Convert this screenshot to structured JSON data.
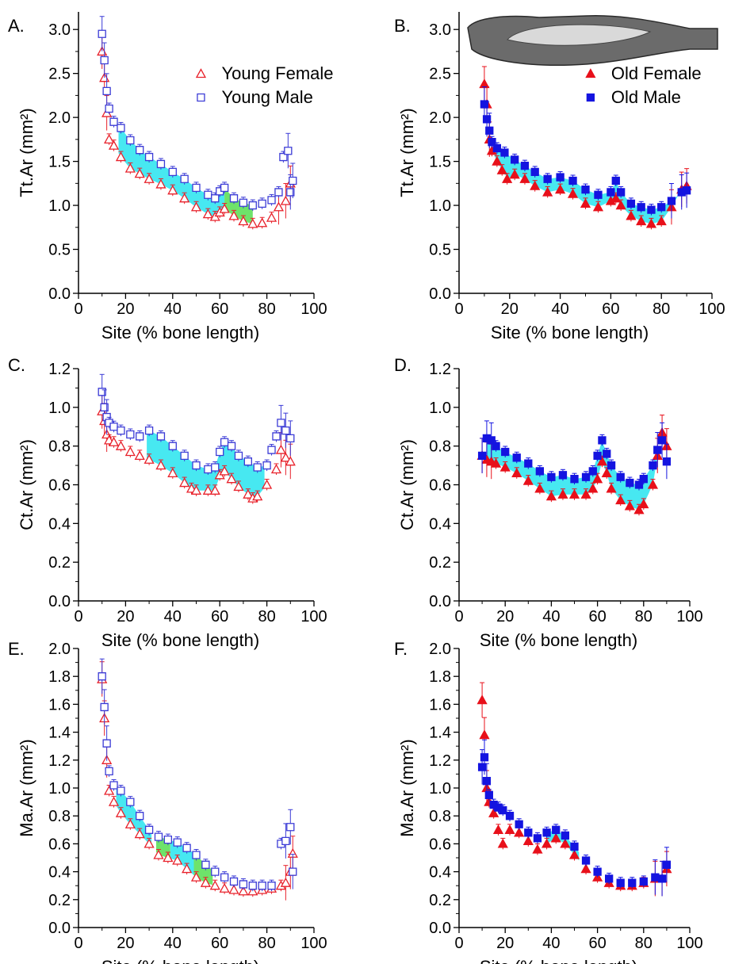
{
  "chart_data": [
    {
      "panel": "A.",
      "type": "scatter",
      "xlabel": "Site (% bone length)",
      "ylabel": "Tt.Ar (mm²)",
      "xlim": [
        0,
        100
      ],
      "ylim": [
        0,
        3.2
      ],
      "xticks": [
        "0",
        "20",
        "40",
        "60",
        "80",
        "100"
      ],
      "yticks": [
        "0.0",
        "0.5",
        "1.0",
        "1.5",
        "2.0",
        "2.5",
        "3.0"
      ],
      "legend_position": "top-right",
      "series": [
        {
          "name": "Young Female",
          "marker": "open-triangle",
          "color": "#e8202a",
          "x": [
            10,
            11,
            12,
            13,
            15,
            18,
            22,
            26,
            30,
            35,
            40,
            45,
            50,
            55,
            58,
            60,
            62,
            66,
            70,
            74,
            78,
            82,
            85,
            88,
            90
          ],
          "y": [
            2.75,
            2.45,
            2.05,
            1.75,
            1.68,
            1.55,
            1.42,
            1.36,
            1.3,
            1.24,
            1.17,
            1.08,
            0.98,
            0.9,
            0.87,
            0.92,
            0.96,
            0.88,
            0.82,
            0.79,
            0.8,
            0.86,
            0.98,
            1.05,
            1.25
          ]
        },
        {
          "name": "Young Male",
          "marker": "open-square",
          "color": "#3b3bd6",
          "x": [
            10,
            11,
            12,
            13,
            15,
            18,
            22,
            26,
            30,
            35,
            40,
            45,
            50,
            55,
            58,
            60,
            62,
            66,
            70,
            74,
            78,
            82,
            85,
            87,
            89,
            90,
            91
          ],
          "y": [
            2.95,
            2.65,
            2.3,
            2.1,
            1.95,
            1.88,
            1.74,
            1.63,
            1.55,
            1.47,
            1.38,
            1.3,
            1.2,
            1.12,
            1.08,
            1.16,
            1.2,
            1.08,
            1.03,
            1.0,
            1.02,
            1.06,
            1.15,
            1.55,
            1.62,
            1.15,
            1.28
          ]
        }
      ],
      "shading": [
        {
          "color": "cyan",
          "x": [
            17,
            62
          ]
        },
        {
          "color": "green",
          "x": [
            62,
            74
          ]
        }
      ]
    },
    {
      "panel": "B.",
      "type": "scatter",
      "xlabel": "Site (% bone length)",
      "ylabel": "Tt.Ar (mm²)",
      "xlim": [
        0,
        100
      ],
      "ylim": [
        0,
        3.2
      ],
      "xticks": [
        "0",
        "20",
        "40",
        "60",
        "80",
        "100"
      ],
      "yticks": [
        "0.0",
        "0.5",
        "1.0",
        "1.5",
        "2.0",
        "2.5",
        "3.0"
      ],
      "legend_position": "top-right",
      "inset_image": "bone-photo",
      "series": [
        {
          "name": "Old Female",
          "marker": "filled-triangle",
          "color": "#e8101a",
          "x": [
            10,
            11,
            12,
            13,
            15,
            17,
            19,
            22,
            26,
            30,
            35,
            40,
            45,
            50,
            55,
            60,
            62,
            64,
            68,
            72,
            76,
            80,
            84,
            88,
            90
          ],
          "y": [
            2.38,
            2.15,
            1.75,
            1.62,
            1.5,
            1.4,
            1.3,
            1.35,
            1.3,
            1.22,
            1.15,
            1.18,
            1.13,
            1.02,
            0.98,
            1.05,
            1.08,
            1.0,
            0.88,
            0.82,
            0.79,
            0.82,
            0.98,
            1.18,
            1.22
          ]
        },
        {
          "name": "Old Male",
          "marker": "filled-square",
          "color": "#1414e0",
          "x": [
            10,
            11,
            12,
            13,
            15,
            18,
            22,
            26,
            30,
            35,
            40,
            45,
            50,
            55,
            60,
            62,
            64,
            68,
            72,
            76,
            80,
            84,
            88,
            90
          ],
          "y": [
            2.15,
            1.98,
            1.85,
            1.72,
            1.65,
            1.6,
            1.52,
            1.45,
            1.38,
            1.3,
            1.32,
            1.28,
            1.18,
            1.12,
            1.15,
            1.28,
            1.15,
            1.02,
            0.98,
            0.95,
            0.98,
            1.05,
            1.15,
            1.17
          ]
        }
      ],
      "shading": [
        {
          "color": "cyan",
          "x": [
            14,
            88
          ]
        }
      ]
    },
    {
      "panel": "C.",
      "type": "scatter",
      "xlabel": "Site (% bone length)",
      "ylabel": "Ct.Ar (mm²)",
      "xlim": [
        0,
        100
      ],
      "ylim": [
        0,
        1.2
      ],
      "xticks": [
        "0",
        "20",
        "40",
        "60",
        "80",
        "100"
      ],
      "yticks": [
        "0.0",
        "0.2",
        "0.4",
        "0.6",
        "0.8",
        "1.0",
        "1.2"
      ],
      "series": [
        {
          "name": "Young Female",
          "marker": "open-triangle",
          "color": "#e8202a",
          "x": [
            10,
            11,
            12,
            13,
            15,
            18,
            22,
            26,
            30,
            35,
            40,
            45,
            48,
            50,
            55,
            58,
            60,
            62,
            65,
            68,
            72,
            74,
            76,
            80,
            84,
            86,
            88,
            90
          ],
          "y": [
            0.98,
            0.93,
            0.86,
            0.83,
            0.82,
            0.8,
            0.77,
            0.75,
            0.73,
            0.7,
            0.66,
            0.61,
            0.58,
            0.57,
            0.57,
            0.57,
            0.65,
            0.67,
            0.63,
            0.59,
            0.55,
            0.53,
            0.54,
            0.6,
            0.68,
            0.78,
            0.74,
            0.72
          ]
        },
        {
          "name": "Young Male",
          "marker": "open-square",
          "color": "#3b3bd6",
          "x": [
            10,
            11,
            12,
            13,
            15,
            18,
            22,
            26,
            30,
            35,
            40,
            45,
            50,
            55,
            58,
            60,
            62,
            65,
            68,
            72,
            76,
            80,
            82,
            84,
            86,
            88,
            90
          ],
          "y": [
            1.08,
            1.0,
            0.95,
            0.92,
            0.9,
            0.88,
            0.86,
            0.85,
            0.88,
            0.85,
            0.8,
            0.75,
            0.7,
            0.68,
            0.69,
            0.77,
            0.82,
            0.8,
            0.75,
            0.72,
            0.69,
            0.7,
            0.78,
            0.85,
            0.92,
            0.88,
            0.84
          ]
        }
      ],
      "shading": [
        {
          "color": "cyan",
          "x": [
            29,
            79
          ]
        }
      ]
    },
    {
      "panel": "D.",
      "type": "scatter",
      "xlabel": "Site (% bone length)",
      "ylabel": "Ct.Ar (mm²)",
      "xlim": [
        0,
        100
      ],
      "ylim": [
        0,
        1.2
      ],
      "xticks": [
        "0",
        "20",
        "40",
        "60",
        "80",
        "100"
      ],
      "yticks": [
        "0.0",
        "0.2",
        "0.4",
        "0.6",
        "0.8",
        "1.0",
        "1.2"
      ],
      "series": [
        {
          "name": "Old Female",
          "marker": "filled-triangle",
          "color": "#e8101a",
          "x": [
            10,
            12,
            14,
            16,
            20,
            25,
            30,
            35,
            40,
            45,
            50,
            55,
            58,
            60,
            62,
            64,
            66,
            70,
            74,
            78,
            80,
            84,
            86,
            88,
            90
          ],
          "y": [
            0.75,
            0.73,
            0.72,
            0.71,
            0.69,
            0.66,
            0.62,
            0.58,
            0.54,
            0.55,
            0.55,
            0.55,
            0.58,
            0.63,
            0.72,
            0.66,
            0.58,
            0.52,
            0.49,
            0.47,
            0.5,
            0.6,
            0.75,
            0.87,
            0.8
          ]
        },
        {
          "name": "Old Male",
          "marker": "filled-square",
          "color": "#1414e0",
          "x": [
            10,
            12,
            14,
            16,
            20,
            25,
            30,
            35,
            40,
            45,
            50,
            55,
            58,
            60,
            62,
            64,
            66,
            70,
            74,
            78,
            80,
            84,
            86,
            88,
            90
          ],
          "y": [
            0.75,
            0.84,
            0.83,
            0.8,
            0.77,
            0.74,
            0.71,
            0.67,
            0.64,
            0.65,
            0.63,
            0.64,
            0.67,
            0.75,
            0.83,
            0.76,
            0.7,
            0.64,
            0.61,
            0.6,
            0.63,
            0.7,
            0.78,
            0.83,
            0.72
          ]
        }
      ],
      "shading": [
        {
          "color": "cyan",
          "x": [
            12,
            86
          ]
        }
      ]
    },
    {
      "panel": "E.",
      "type": "scatter",
      "xlabel": "Site (% bone length)",
      "ylabel": "Ma.Ar (mm²)",
      "xlim": [
        0,
        100
      ],
      "ylim": [
        0,
        2.0
      ],
      "xticks": [
        "0",
        "20",
        "40",
        "60",
        "80",
        "100"
      ],
      "yticks": [
        "0.0",
        "0.2",
        "0.4",
        "0.6",
        "0.8",
        "1.0",
        "1.2",
        "1.4",
        "1.6",
        "1.8",
        "2.0"
      ],
      "series": [
        {
          "name": "Young Female",
          "marker": "open-triangle",
          "color": "#e8202a",
          "x": [
            10,
            11,
            12,
            13,
            15,
            18,
            22,
            26,
            30,
            34,
            38,
            42,
            46,
            50,
            54,
            58,
            62,
            66,
            70,
            74,
            78,
            82,
            86,
            88,
            90,
            91
          ],
          "y": [
            1.78,
            1.5,
            1.2,
            0.98,
            0.9,
            0.82,
            0.74,
            0.67,
            0.6,
            0.52,
            0.5,
            0.48,
            0.42,
            0.36,
            0.32,
            0.3,
            0.28,
            0.27,
            0.26,
            0.26,
            0.27,
            0.28,
            0.3,
            0.32,
            0.4,
            0.53
          ]
        },
        {
          "name": "Young Male",
          "marker": "open-square",
          "color": "#3b3bd6",
          "x": [
            10,
            11,
            12,
            13,
            15,
            18,
            22,
            26,
            30,
            34,
            38,
            42,
            46,
            50,
            54,
            58,
            62,
            66,
            70,
            74,
            78,
            82,
            86,
            88,
            90,
            91
          ],
          "y": [
            1.8,
            1.58,
            1.32,
            1.12,
            1.02,
            0.98,
            0.9,
            0.8,
            0.7,
            0.65,
            0.63,
            0.61,
            0.57,
            0.52,
            0.45,
            0.4,
            0.36,
            0.33,
            0.31,
            0.3,
            0.3,
            0.3,
            0.6,
            0.62,
            0.72,
            0.4
          ]
        }
      ],
      "shading": [
        {
          "color": "cyan",
          "x": [
            16,
            31
          ]
        },
        {
          "color": "green",
          "x": [
            33,
            39
          ]
        },
        {
          "color": "cyan",
          "x": [
            39,
            49
          ]
        },
        {
          "color": "green",
          "x": [
            49,
            57
          ]
        }
      ]
    },
    {
      "panel": "F.",
      "type": "scatter",
      "xlabel": "Site (% bone length)",
      "ylabel": "Ma.Ar (mm²)",
      "xlim": [
        0,
        100
      ],
      "ylim": [
        0,
        2.0
      ],
      "xticks": [
        "0",
        "20",
        "40",
        "60",
        "80",
        "100"
      ],
      "yticks": [
        "0.0",
        "0.2",
        "0.4",
        "0.6",
        "0.8",
        "1.0",
        "1.2",
        "1.4",
        "1.6",
        "1.8",
        "2.0"
      ],
      "series": [
        {
          "name": "Old Female",
          "marker": "filled-triangle",
          "color": "#e8101a",
          "x": [
            10,
            11,
            12,
            13,
            15,
            17,
            19,
            22,
            26,
            30,
            34,
            38,
            42,
            46,
            50,
            55,
            60,
            65,
            70,
            75,
            80,
            85,
            88,
            90
          ],
          "y": [
            1.63,
            1.38,
            1.0,
            0.9,
            0.82,
            0.7,
            0.6,
            0.7,
            0.68,
            0.62,
            0.56,
            0.6,
            0.64,
            0.6,
            0.52,
            0.42,
            0.36,
            0.32,
            0.3,
            0.3,
            0.32,
            0.35,
            0.35,
            0.42
          ]
        },
        {
          "name": "Old Male",
          "marker": "filled-square",
          "color": "#1414e0",
          "x": [
            10,
            11,
            12,
            13,
            15,
            17,
            19,
            22,
            26,
            30,
            34,
            38,
            42,
            46,
            50,
            55,
            60,
            65,
            70,
            75,
            80,
            85,
            88,
            90
          ],
          "y": [
            1.15,
            1.22,
            1.05,
            0.95,
            0.88,
            0.86,
            0.84,
            0.8,
            0.74,
            0.68,
            0.64,
            0.68,
            0.7,
            0.66,
            0.58,
            0.48,
            0.4,
            0.35,
            0.32,
            0.32,
            0.33,
            0.36,
            0.35,
            0.45
          ]
        }
      ],
      "shading": [
        {
          "color": "cyan",
          "x": [
            38,
            52
          ]
        }
      ]
    }
  ],
  "colors": {
    "shade_cyan": "#33e6f0",
    "shade_green": "#5ee05a"
  }
}
